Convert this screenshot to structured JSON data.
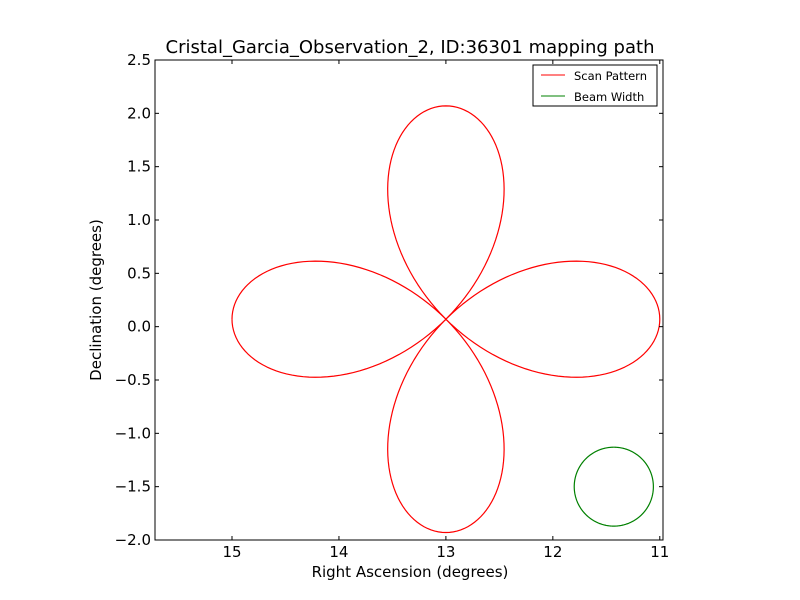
{
  "chart_data": {
    "type": "line",
    "title": "Cristal_Garcia_Observation_2, ID:36301 mapping path",
    "xlabel": "Right Ascension (degrees)",
    "ylabel": "Declination (degrees)",
    "xlim": [
      15.72,
      10.97
    ],
    "ylim": [
      -2.0,
      2.5
    ],
    "x_ticks": [
      {
        "value": 15,
        "label": "15"
      },
      {
        "value": 14,
        "label": "14"
      },
      {
        "value": 13,
        "label": "13"
      },
      {
        "value": 12,
        "label": "12"
      },
      {
        "value": 11,
        "label": "11"
      }
    ],
    "y_ticks": [
      {
        "value": 2.5,
        "label": "2.5"
      },
      {
        "value": 2.0,
        "label": "2.0"
      },
      {
        "value": 1.5,
        "label": "1.5"
      },
      {
        "value": 1.0,
        "label": "1.0"
      },
      {
        "value": 0.5,
        "label": "0.5"
      },
      {
        "value": 0.0,
        "label": "0.0"
      },
      {
        "value": -0.5,
        "label": "−0.5"
      },
      {
        "value": -1.0,
        "label": "−1.0"
      },
      {
        "value": -1.5,
        "label": "−1.5"
      },
      {
        "value": -2.0,
        "label": "−2.0"
      }
    ],
    "grid": false,
    "legend_position": "top-right",
    "series": [
      {
        "name": "Scan Pattern",
        "color": "#ff0000",
        "kind": "rose",
        "center": [
          13.0,
          0.07
        ],
        "radius": 2.0,
        "petals": 4
      },
      {
        "name": "Beam Width",
        "color": "#008000",
        "kind": "circle",
        "center": [
          11.43,
          -1.5
        ],
        "radius": 0.37
      }
    ]
  }
}
